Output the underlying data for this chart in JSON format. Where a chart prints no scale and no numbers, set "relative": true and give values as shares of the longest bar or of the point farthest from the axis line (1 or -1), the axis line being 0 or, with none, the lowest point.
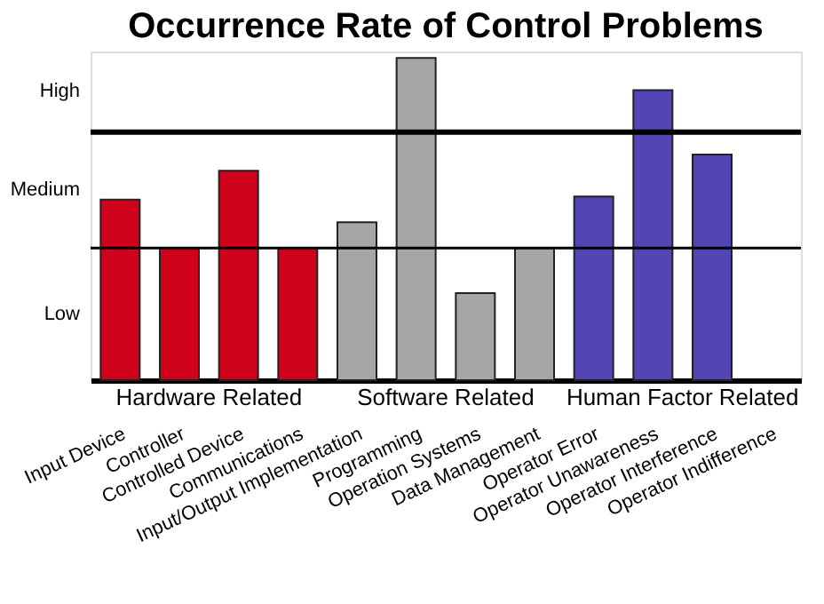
{
  "chart_data": {
    "type": "bar",
    "title": "Occurrence Rate of Control Problems",
    "categories": [
      "Input Device",
      "Controller",
      "Controlled Device",
      "Communications",
      "Input/Output Implementation",
      "Programming",
      "Operation Systems",
      "Data Management",
      "Operator Error",
      "Operator Unawareness",
      "Operator Interference",
      "Operator Indifference"
    ],
    "values": [
      0.56,
      0.41,
      0.65,
      0.41,
      0.49,
      1.0,
      0.27,
      0.41,
      0.57,
      0.9,
      0.7,
      null
    ],
    "colors": [
      "#d0021b",
      "#d0021b",
      "#d0021b",
      "#d0021b",
      "#a6a6a6",
      "#a6a6a6",
      "#a6a6a6",
      "#a6a6a6",
      "#5246b4",
      "#5246b4",
      "#5246b4",
      "#5246b4"
    ],
    "relative": true,
    "ref_lines": [
      {
        "axis": "y",
        "value": 0.41,
        "color": "#000000"
      },
      {
        "axis": "y",
        "value": 0.77,
        "color": "#000000"
      }
    ],
    "annotations": [
      "Low",
      "Medium",
      "High",
      "Hardware Related",
      "Software Related",
      "Human Factor Related"
    ],
    "grid": false
  }
}
